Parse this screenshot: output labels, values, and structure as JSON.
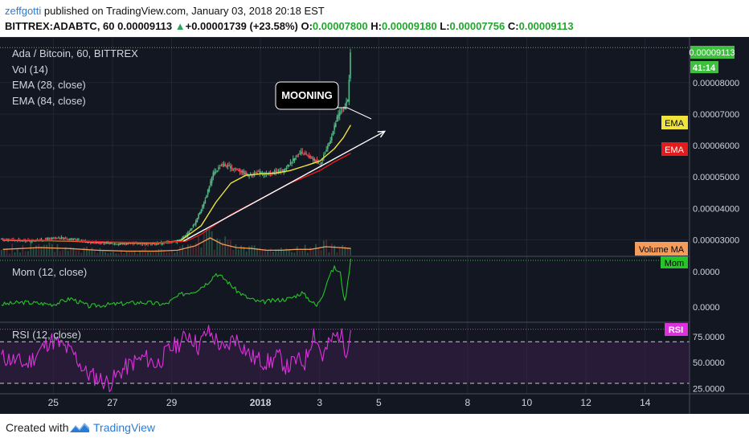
{
  "header": {
    "author": "zeffgotti",
    "published_text": "published on TradingView.com, January 03, 2018 20:18 EST",
    "symbol": "BITTREX:ADABTC, 60",
    "price": "0.00009113",
    "change": "+0.00001739 (+23.58%)",
    "o_label": "O:",
    "o_value": "0.00007800",
    "h_label": "H:",
    "h_value": "0.00009180",
    "l_label": "L:",
    "l_value": "0.00007756",
    "c_label": "C:",
    "c_value": "0.00009113"
  },
  "legend": {
    "main": "Ada / Bitcoin, 60, BITTREX",
    "vol": "Vol (14)",
    "ema1": "EMA (28, close)",
    "ema2": "EMA (84, close)",
    "mom": "Mom (12, close)",
    "rsi": "RSI (12, close)"
  },
  "annotation": {
    "text": "MOONING"
  },
  "price_badge": {
    "value": "0.00009113",
    "countdown": "41:14"
  },
  "side_labels": {
    "ema_yellow": "EMA",
    "ema_red": "EMA",
    "volume_ma": "Volume MA",
    "mom": "Mom",
    "rsi": "RSI"
  },
  "colors": {
    "background": "#131722",
    "candle_up": "#53b987",
    "candle_down": "#eb4d5c",
    "ema28": "#f0e43c",
    "ema84": "#e41b1b",
    "mom": "#27c427",
    "rsi": "#dd31dd",
    "volume_ma": "#f59c5a",
    "trendline": "#ffffff",
    "price_line": "#3fbf3f"
  },
  "chart_data": [
    {
      "type": "line",
      "title": "Ada / Bitcoin, 60, BITTREX",
      "y_ticks": [
        "0.00008000",
        "0.00007000",
        "0.00006000",
        "0.00005000",
        "0.00004000",
        "0.00003000"
      ],
      "ylim": [
        2.5e-05,
        9.4e-05
      ],
      "x_ticks": [
        "25",
        "27",
        "29",
        "2018",
        "3",
        "5",
        "8",
        "10",
        "12",
        "14"
      ],
      "x_tick_days": [
        25,
        27,
        29,
        32,
        34,
        36,
        39,
        41,
        43,
        45
      ],
      "xlim": [
        23.2,
        46.5
      ],
      "data_end_day": 35.05,
      "series": [
        {
          "name": "price",
          "x": [
            23.3,
            23.8,
            24.3,
            24.8,
            25.3,
            25.8,
            26.3,
            26.8,
            27.3,
            27.8,
            28.3,
            28.8,
            29.2,
            29.5,
            29.8,
            30.1,
            30.4,
            30.7,
            31.0,
            31.3,
            31.6,
            31.9,
            32.2,
            32.5,
            32.8,
            33.0,
            33.2,
            33.4,
            33.6,
            33.8,
            34.0,
            34.2,
            34.4,
            34.6,
            34.75,
            34.85,
            34.95,
            35.0,
            35.05
          ],
          "values": [
            3.02e-05,
            2.99e-05,
            2.97e-05,
            3.03e-05,
            3.06e-05,
            3e-05,
            2.92e-05,
            2.89e-05,
            2.87e-05,
            2.89e-05,
            2.87e-05,
            2.91e-05,
            2.96e-05,
            3.15e-05,
            3.55e-05,
            4.2e-05,
            5.1e-05,
            5.4e-05,
            5.3e-05,
            5.2e-05,
            5.05e-05,
            5.15e-05,
            5.08e-05,
            5.15e-05,
            5.2e-05,
            5.45e-05,
            5.65e-05,
            5.78e-05,
            5.65e-05,
            5.55e-05,
            5.42e-05,
            5.8e-05,
            6.3e-05,
            6.9e-05,
            7.15e-05,
            7.2e-05,
            7.45e-05,
            8.2e-05,
            9.11e-05
          ]
        },
        {
          "name": "EMA (28, close)",
          "x": [
            23.3,
            25.0,
            27.0,
            28.5,
            29.3,
            30.0,
            30.5,
            31.0,
            31.5,
            32.0,
            32.5,
            33.0,
            33.5,
            34.0,
            34.5,
            34.8,
            35.05
          ],
          "values": [
            2.98e-05,
            2.97e-05,
            2.92e-05,
            2.9e-05,
            2.97e-05,
            3.45e-05,
            4.2e-05,
            4.8e-05,
            5.05e-05,
            5.1e-05,
            5.12e-05,
            5.2e-05,
            5.35e-05,
            5.5e-05,
            5.9e-05,
            6.25e-05,
            6.65e-05
          ]
        },
        {
          "name": "EMA (84, close)",
          "x": [
            23.3,
            25.0,
            27.0,
            28.5,
            29.5,
            30.0,
            30.5,
            31.0,
            31.5,
            32.0,
            32.5,
            33.0,
            33.5,
            34.0,
            34.5,
            35.05
          ],
          "values": [
            2.99e-05,
            2.98e-05,
            2.93e-05,
            2.91e-05,
            2.96e-05,
            3.18e-05,
            3.5e-05,
            3.8e-05,
            4.05e-05,
            4.3e-05,
            4.55e-05,
            4.8e-05,
            5e-05,
            5.2e-05,
            5.48e-05,
            5.75e-05
          ]
        }
      ],
      "trendline": {
        "x": [
          29.4,
          36.2
        ],
        "values": [
          2.96e-05,
          6.45e-05
        ]
      },
      "annotation_target": {
        "x": 34.9,
        "value": 6.7e-05
      }
    },
    {
      "type": "bar",
      "title": "Vol (14)",
      "series": [
        {
          "name": "Volume MA",
          "x": [
            23.3,
            24.5,
            25.5,
            26.5,
            27.5,
            28.5,
            29.2,
            29.8,
            30.3,
            30.7,
            31.2,
            31.7,
            32.2,
            32.7,
            33.2,
            33.7,
            34.2,
            34.7,
            35.05
          ],
          "values": [
            0.35,
            0.45,
            0.4,
            0.3,
            0.25,
            0.25,
            0.3,
            0.55,
            1.0,
            0.65,
            0.45,
            0.4,
            0.3,
            0.3,
            0.35,
            0.35,
            0.5,
            0.45,
            0.4
          ]
        }
      ]
    },
    {
      "type": "line",
      "title": "Mom (12, close)",
      "y_ticks": [
        "0.0000",
        "0.0000"
      ],
      "series": [
        {
          "name": "Mom (12, close)",
          "x": [
            23.3,
            24.0,
            25.0,
            25.6,
            26.2,
            27.0,
            28.0,
            28.8,
            29.3,
            29.8,
            30.2,
            30.5,
            30.8,
            31.2,
            31.6,
            32.0,
            32.5,
            33.0,
            33.4,
            33.7,
            33.9,
            34.1,
            34.3,
            34.5,
            34.7,
            34.85,
            34.95,
            35.05
          ],
          "values": [
            0.05,
            0.1,
            0.05,
            0.2,
            0.0,
            0.05,
            0.1,
            0.05,
            0.3,
            0.4,
            0.6,
            0.85,
            0.7,
            0.4,
            0.2,
            0.1,
            0.15,
            0.2,
            0.35,
            0.15,
            0.0,
            0.3,
            0.75,
            1.0,
            0.85,
            0.1,
            0.6,
            1.25
          ]
        }
      ]
    },
    {
      "type": "line",
      "title": "RSI (12, close)",
      "y_ticks": [
        "75.0000",
        "50.0000",
        "25.0000"
      ],
      "ylim": [
        20,
        88
      ],
      "bands": [
        70,
        30
      ],
      "series": [
        {
          "name": "RSI (12, close)",
          "x": [
            23.3,
            23.7,
            24.1,
            24.5,
            24.9,
            25.3,
            25.7,
            26.1,
            26.5,
            26.9,
            27.3,
            27.7,
            28.1,
            28.5,
            28.9,
            29.3,
            29.6,
            29.9,
            30.2,
            30.5,
            30.8,
            31.1,
            31.4,
            31.7,
            32.0,
            32.3,
            32.6,
            32.9,
            33.2,
            33.5,
            33.8,
            34.1,
            34.4,
            34.7,
            34.9,
            35.05
          ],
          "values": [
            55,
            52,
            48,
            60,
            72,
            66,
            58,
            40,
            35,
            30,
            42,
            50,
            55,
            48,
            62,
            70,
            78,
            65,
            80,
            72,
            60,
            75,
            66,
            55,
            52,
            50,
            56,
            45,
            52,
            50,
            80,
            55,
            72,
            78,
            62,
            82
          ]
        }
      ]
    }
  ]
}
